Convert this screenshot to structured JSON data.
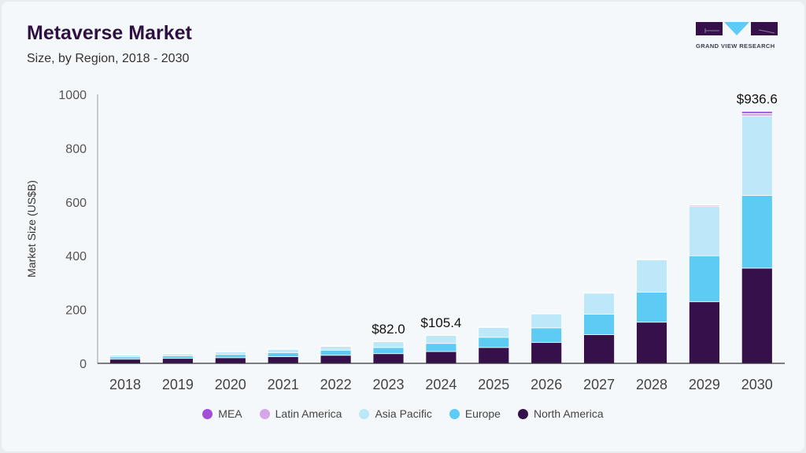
{
  "header": {
    "title": "Metaverse Market",
    "subtitle": "Size, by Region, 2018 - 2030",
    "logo_text": "GRAND VIEW RESEARCH"
  },
  "chart_data": {
    "type": "bar",
    "stacked": true,
    "title": "Metaverse Market",
    "subtitle": "Size, by Region, 2018 - 2030",
    "xlabel": "",
    "ylabel": "Market Size (US$B)",
    "ylim": [
      0,
      1000
    ],
    "yticks": [
      "0",
      "200",
      "400",
      "600",
      "800",
      "1000"
    ],
    "grid": false,
    "legend_position": "bottom",
    "categories": [
      "2018",
      "2019",
      "2020",
      "2021",
      "2022",
      "2023",
      "2024",
      "2025",
      "2026",
      "2027",
      "2028",
      "2029",
      "2030"
    ],
    "series": [
      {
        "name": "North America",
        "color": "#35104a",
        "values": [
          15.5,
          18.5,
          21,
          25,
          30,
          36,
          44,
          59,
          78,
          107,
          153,
          229,
          354
        ]
      },
      {
        "name": "Europe",
        "color": "#5ecbf5",
        "values": [
          8.5,
          9.5,
          12,
          15,
          19,
          23,
          30,
          38,
          54,
          76,
          112,
          171,
          270
        ]
      },
      {
        "name": "Asia Pacific",
        "color": "#bde8f9",
        "values": [
          8,
          8,
          11,
          13,
          15,
          22,
          30,
          37,
          52,
          78,
          120,
          183,
          295
        ]
      },
      {
        "name": "Latin America",
        "color": "#d6a7e8",
        "values": [
          0.3,
          0.3,
          0.4,
          0.5,
          0.6,
          0.7,
          1,
          1,
          1.2,
          1.5,
          3,
          5,
          10
        ]
      },
      {
        "name": "MEA",
        "color": "#a24fd8",
        "values": [
          0.1,
          0.1,
          0.1,
          0.2,
          0.2,
          0.3,
          0.4,
          0.4,
          0.5,
          0.5,
          1,
          2,
          7.6
        ]
      }
    ],
    "data_labels": [
      {
        "category": "2023",
        "text": "$82.0"
      },
      {
        "category": "2024",
        "text": "$105.4"
      },
      {
        "category": "2030",
        "text": "$936.6"
      }
    ],
    "legend_order": [
      "MEA",
      "Latin America",
      "Asia Pacific",
      "Europe",
      "North America"
    ]
  }
}
